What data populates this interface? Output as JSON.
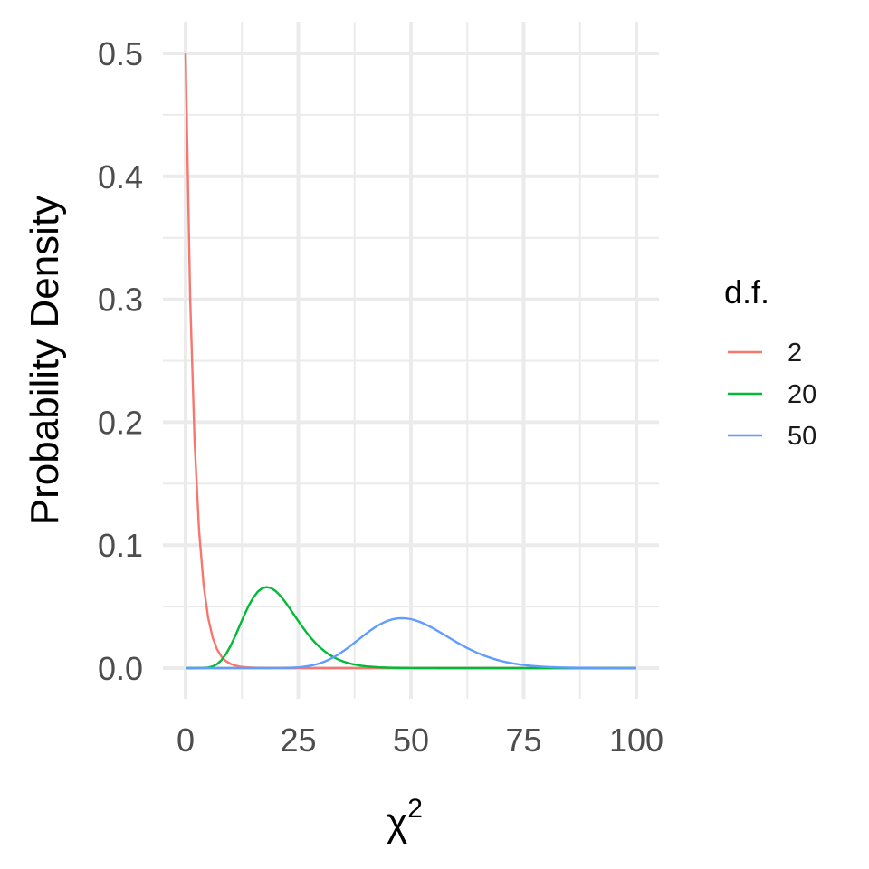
{
  "chart_data": {
    "type": "line",
    "xlabel_base": "χ",
    "xlabel_sup": "2",
    "ylabel": "Probability Density",
    "xlim": [
      0,
      100
    ],
    "ylim": [
      0,
      0.5
    ],
    "x_ticks": [
      "0",
      "25",
      "50",
      "75",
      "100"
    ],
    "x_tick_values": [
      0,
      25,
      50,
      75,
      100
    ],
    "y_ticks": [
      "0.0",
      "0.1",
      "0.2",
      "0.3",
      "0.4",
      "0.5"
    ],
    "y_tick_values": [
      0,
      0.1,
      0.2,
      0.3,
      0.4,
      0.5
    ],
    "grid": true,
    "legend": {
      "title": "d.f.",
      "position": "right",
      "entries": [
        {
          "label": "2",
          "color": "#F8766D"
        },
        {
          "label": "20",
          "color": "#00BA38"
        },
        {
          "label": "50",
          "color": "#619CFF"
        }
      ]
    },
    "series": [
      {
        "df": 2,
        "color": "#F8766D"
      },
      {
        "df": 20,
        "color": "#00BA38"
      },
      {
        "df": 50,
        "color": "#619CFF"
      }
    ]
  }
}
